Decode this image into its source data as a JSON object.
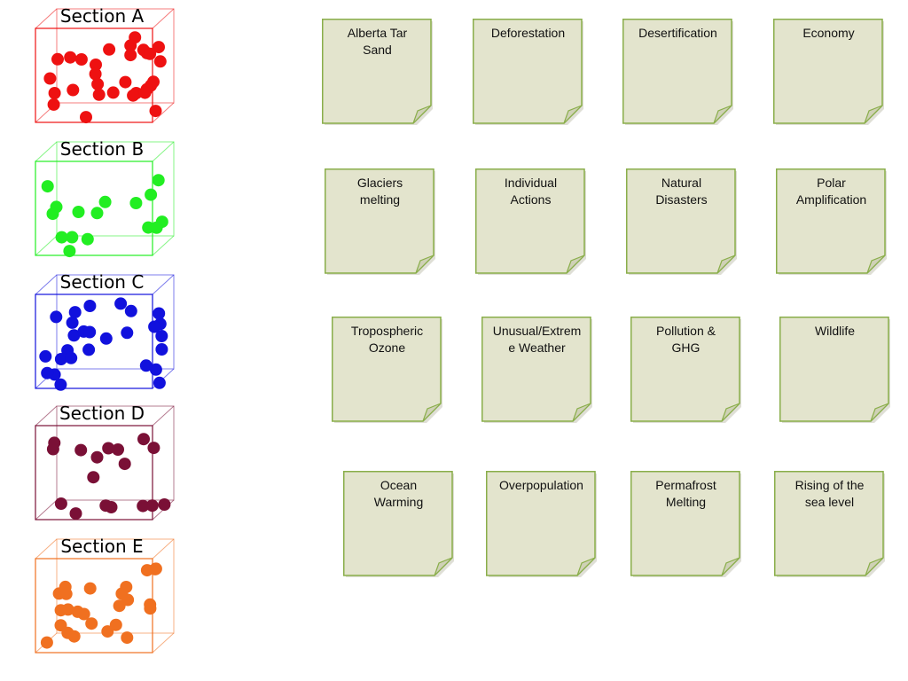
{
  "sections": [
    {
      "label": "Section A",
      "color": "#ee1111",
      "dots": 30
    },
    {
      "label": "Section B",
      "color": "#22ee22",
      "dots": 16
    },
    {
      "label": "Section C",
      "color": "#1111dd",
      "dots": 27
    },
    {
      "label": "Section D",
      "color": "#7a1036",
      "dots": 17
    },
    {
      "label": "Section E",
      "color": "#f07020",
      "dots": 25
    }
  ],
  "note_style": {
    "fill": "#e3e4cd",
    "stroke": "#8aae4a"
  },
  "notes": [
    {
      "label": "Alberta Tar\nSand"
    },
    {
      "label": "Deforestation"
    },
    {
      "label": "Desertification"
    },
    {
      "label": "Economy"
    },
    {
      "label": "Glaciers\nmelting"
    },
    {
      "label": "Individual\nActions"
    },
    {
      "label": "Natural\nDisasters"
    },
    {
      "label": "Polar\nAmplification"
    },
    {
      "label": "Tropospheric\nOzone"
    },
    {
      "label": "Unusual/Extrem\ne Weather"
    },
    {
      "label": "Pollution &\nGHG"
    },
    {
      "label": "Wildlife"
    },
    {
      "label": "Ocean\nWarming"
    },
    {
      "label": "Overpopulation"
    },
    {
      "label": "Permafrost\nMelting"
    },
    {
      "label": "Rising of the\nsea level"
    }
  ]
}
